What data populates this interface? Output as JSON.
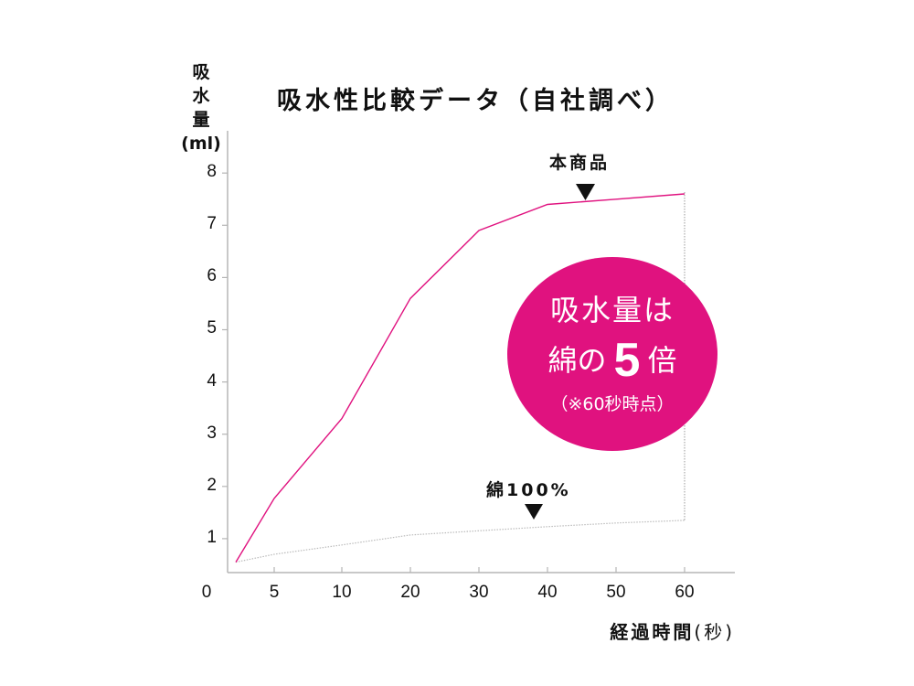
{
  "chart_data": {
    "type": "line",
    "title": "吸水性比較データ（自社調べ）",
    "ylabel": "吸水量(ml)",
    "ylabel_lines": [
      "吸",
      "水",
      "量",
      "(ml)"
    ],
    "xlabel": "経過時間",
    "xlabel_unit": "(秒)",
    "x_tick_labels": [
      "0",
      "5",
      "10",
      "20",
      "30",
      "40",
      "50",
      "60"
    ],
    "y_tick_labels": [
      "1",
      "2",
      "3",
      "4",
      "5",
      "6",
      "7",
      "8"
    ],
    "ylim": [
      0,
      8
    ],
    "grid": false,
    "x": [
      0,
      5,
      10,
      20,
      30,
      40,
      50,
      60
    ],
    "series": [
      {
        "name": "本商品",
        "color": "#e0127f",
        "style": "solid",
        "values": [
          0.55,
          1.77,
          3.3,
          5.6,
          6.9,
          7.4,
          7.5,
          7.6
        ]
      },
      {
        "name": "綿100%",
        "color": "#bbbbbb",
        "style": "dotted",
        "values": [
          0.55,
          0.7,
          0.88,
          1.07,
          1.15,
          1.23,
          1.3,
          1.35
        ]
      }
    ],
    "annotations": [
      {
        "text": "本商品",
        "marker": "down-triangle",
        "x": 45
      },
      {
        "text": "綿100%",
        "marker": "down-triangle",
        "x": 38
      },
      {
        "text": "吸水量は綿の5倍（※60秒時点）",
        "shape": "circle",
        "color": "#e0127f"
      }
    ]
  },
  "badge": {
    "line1": "吸水量は",
    "line2_prefix": "綿の",
    "line2_number": "5",
    "line2_suffix": "倍",
    "note": "（※60秒時点）"
  }
}
